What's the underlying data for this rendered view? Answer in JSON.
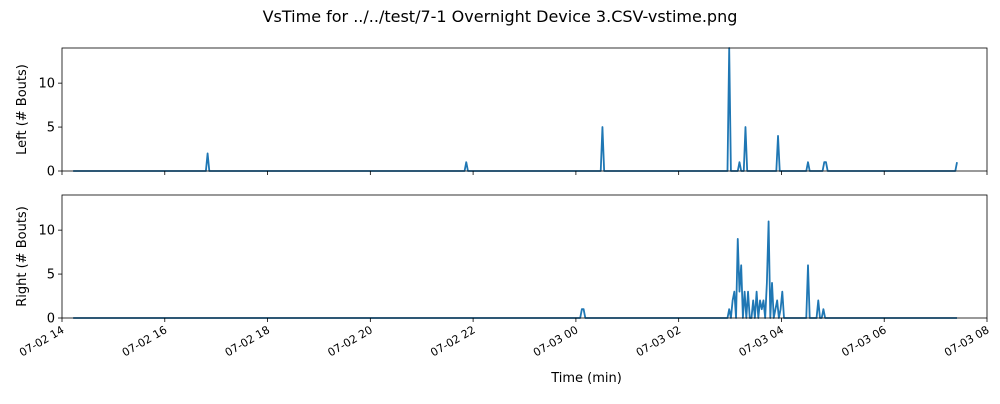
{
  "figure_title": "VsTime for ../../test/7-1 Overnight Device 3.CSV-vstime.png",
  "line_color": "#1f77b4",
  "chart_data": [
    {
      "type": "line",
      "ylabel": "Left (# Bouts)",
      "ylim": [
        0,
        14
      ],
      "yticks": [
        0,
        5,
        10
      ],
      "xlim": [
        "2025-07-02 14:00",
        "2025-07-03 08:00"
      ],
      "series": [
        {
          "x": [
            "2025-07-02 14:13",
            "2025-07-02 16:48",
            "2025-07-02 16:50",
            "2025-07-02 16:52",
            "2025-07-02 21:50",
            "2025-07-02 21:52",
            "2025-07-02 21:54",
            "2025-07-03 00:29",
            "2025-07-03 00:31",
            "2025-07-03 00:33",
            "2025-07-03 02:57",
            "2025-07-03 02:59",
            "2025-07-03 03:01",
            "2025-07-03 03:09",
            "2025-07-03 03:11",
            "2025-07-03 03:13",
            "2025-07-03 03:16",
            "2025-07-03 03:18",
            "2025-07-03 03:20",
            "2025-07-03 03:54",
            "2025-07-03 03:56",
            "2025-07-03 03:58",
            "2025-07-03 04:29",
            "2025-07-03 04:31",
            "2025-07-03 04:33",
            "2025-07-03 04:48",
            "2025-07-03 04:50",
            "2025-07-03 04:52",
            "2025-07-03 04:54",
            "2025-07-03 07:23",
            "2025-07-03 07:25"
          ],
          "values": [
            0,
            0,
            2,
            0,
            0,
            1,
            0,
            0,
            5,
            0,
            0,
            14,
            0,
            0,
            1,
            0,
            0,
            5,
            0,
            0,
            4,
            0,
            0,
            1,
            0,
            0,
            1,
            1,
            0,
            0,
            1
          ]
        }
      ]
    },
    {
      "type": "line",
      "ylabel": "Right (# Bouts)",
      "xlabel": "Time (min)",
      "ylim": [
        0,
        14
      ],
      "yticks": [
        0,
        5,
        10
      ],
      "xlim": [
        "2025-07-02 14:00",
        "2025-07-03 08:00"
      ],
      "xticks": [
        "07-02 14",
        "07-02 16",
        "07-02 18",
        "07-02 20",
        "07-02 22",
        "07-03 00",
        "07-03 02",
        "07-03 04",
        "07-03 06",
        "07-03 08"
      ],
      "series": [
        {
          "x": [
            "2025-07-02 14:13",
            "2025-07-03 00:05",
            "2025-07-03 00:07",
            "2025-07-03 00:09",
            "2025-07-03 00:11",
            "2025-07-03 02:57",
            "2025-07-03 02:59",
            "2025-07-03 03:01",
            "2025-07-03 03:03",
            "2025-07-03 03:05",
            "2025-07-03 03:07",
            "2025-07-03 03:09",
            "2025-07-03 03:11",
            "2025-07-03 03:13",
            "2025-07-03 03:15",
            "2025-07-03 03:17",
            "2025-07-03 03:19",
            "2025-07-03 03:21",
            "2025-07-03 03:23",
            "2025-07-03 03:25",
            "2025-07-03 03:27",
            "2025-07-03 03:29",
            "2025-07-03 03:31",
            "2025-07-03 03:33",
            "2025-07-03 03:35",
            "2025-07-03 03:37",
            "2025-07-03 03:39",
            "2025-07-03 03:41",
            "2025-07-03 03:43",
            "2025-07-03 03:45",
            "2025-07-03 03:47",
            "2025-07-03 03:49",
            "2025-07-03 03:51",
            "2025-07-03 03:53",
            "2025-07-03 03:55",
            "2025-07-03 03:57",
            "2025-07-03 03:59",
            "2025-07-03 04:01",
            "2025-07-03 04:03",
            "2025-07-03 04:29",
            "2025-07-03 04:31",
            "2025-07-03 04:33",
            "2025-07-03 04:41",
            "2025-07-03 04:43",
            "2025-07-03 04:45",
            "2025-07-03 04:47",
            "2025-07-03 04:49",
            "2025-07-03 04:51",
            "2025-07-03 04:53",
            "2025-07-03 07:25"
          ],
          "values": [
            0,
            0,
            1,
            1,
            0,
            0,
            1,
            0,
            2,
            3,
            0,
            9,
            3,
            6,
            0,
            3,
            0,
            3,
            0,
            0,
            2,
            0,
            3,
            0,
            2,
            1,
            2,
            0,
            4,
            11,
            0,
            4,
            0,
            1,
            2,
            0,
            1,
            3,
            0,
            0,
            6,
            0,
            0,
            2,
            0,
            0,
            1,
            0,
            0,
            0
          ]
        }
      ]
    }
  ]
}
